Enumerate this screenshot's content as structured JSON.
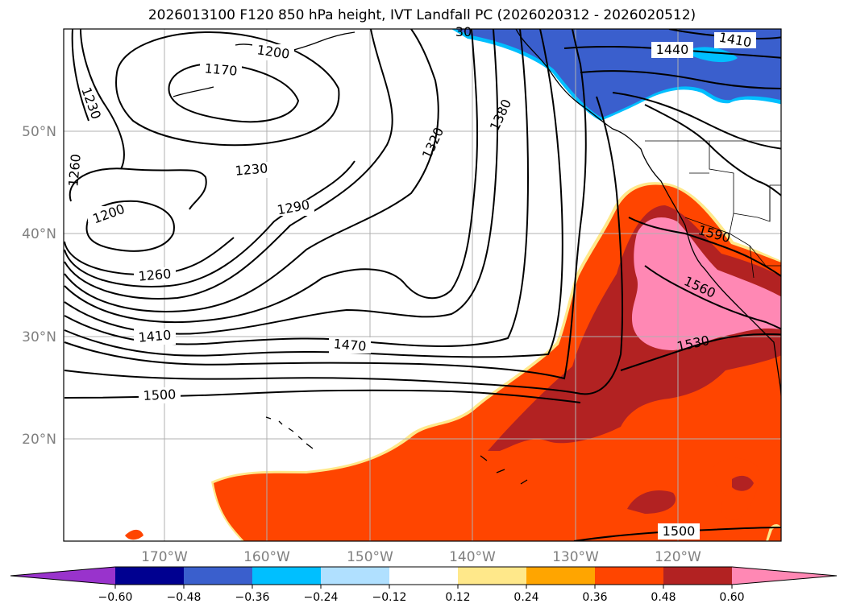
{
  "title": "2026013100 F120 850 hPa height, IVT Landfall PC (2026020312 - 2026020512)",
  "map": {
    "lat_labels": [
      "50°N",
      "40°N",
      "30°N",
      "20°N"
    ],
    "lon_labels": [
      "170°W",
      "160°W",
      "150°W",
      "140°W",
      "130°W",
      "120°W"
    ],
    "contour_labels": [
      "1200",
      "1170",
      "1230",
      "1260",
      "1230",
      "1200",
      "1260",
      "1410",
      "1500",
      "1470",
      "1290",
      "1320",
      "1380",
      "1440",
      "1410",
      "1590",
      "1560",
      "1530",
      "1500",
      "30"
    ],
    "colors": {
      "deep_neg": "#000090",
      "neg_medium": "#3a5fcd",
      "neg_light": "#00bfff",
      "pos_orange": "#ff4500",
      "pos_red": "#b22222",
      "pos_pink": "#ff88b4",
      "pos_yellow": "#ffe88a"
    }
  },
  "colorbar": {
    "colors": [
      "#9933cc",
      "#000090",
      "#3a5fcd",
      "#00bfff",
      "#b0e0ff",
      "#ffffff",
      "#ffe88a",
      "#ffa500",
      "#ff4500",
      "#b22222",
      "#ff88b4"
    ],
    "tick_labels": [
      "−0.60",
      "−0.48",
      "−0.36",
      "−0.24",
      "−0.12",
      "0.12",
      "0.24",
      "0.36",
      "0.48",
      "0.60"
    ]
  }
}
